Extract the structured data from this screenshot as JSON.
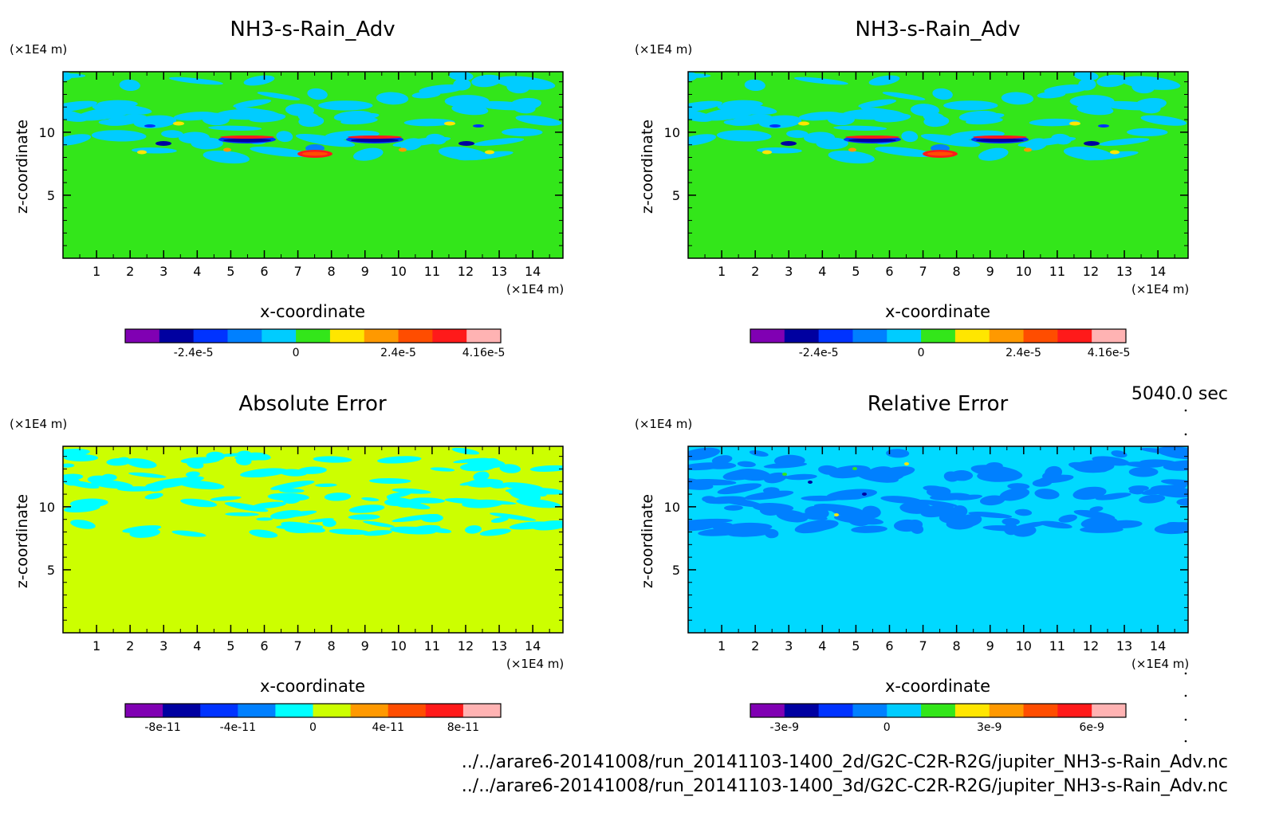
{
  "timestamp": "5040.0 sec",
  "files": [
    "../../arare6-20141008/run_20141103-1400_2d/G2C-C2R-R2G/jupiter_NH3-s-Rain_Adv.nc",
    "../../arare6-20141008/run_20141103-1400_3d/G2C-C2R-R2G/jupiter_NH3-s-Rain_Adv.nc"
  ],
  "chart_data": [
    {
      "type": "heatmap",
      "title": "NH3-s-Rain_Adv",
      "xlabel": "x-coordinate",
      "ylabel": "z-coordinate",
      "x_unit": "(×1E4 m)",
      "y_unit": "(×1E4 m)",
      "xlim": [
        0,
        14.9
      ],
      "ylim": [
        0,
        14.8
      ],
      "xticks": [
        "1",
        "2",
        "3",
        "4",
        "5",
        "6",
        "7",
        "8",
        "9",
        "10",
        "11",
        "12",
        "13",
        "14"
      ],
      "yticks": [
        "5",
        "10"
      ],
      "background_color": "#33e61a",
      "field_pattern": "rain",
      "colorbar": {
        "colors": [
          "#8000b3",
          "#0000a0",
          "#0033ff",
          "#0080ff",
          "#00ccff",
          "#33e61a",
          "#ffe600",
          "#ff9900",
          "#ff4d00",
          "#ff1a1a",
          "#ffb3b3"
        ],
        "labels": [
          "-2.4e-5",
          "0",
          "2.4e-5",
          "4.16e-5"
        ],
        "label_positions": [
          2,
          5,
          8,
          10.5
        ]
      }
    },
    {
      "type": "heatmap",
      "title": "NH3-s-Rain_Adv",
      "xlabel": "x-coordinate",
      "ylabel": "z-coordinate",
      "x_unit": "(×1E4 m)",
      "y_unit": "(×1E4 m)",
      "xlim": [
        0,
        14.9
      ],
      "ylim": [
        0,
        14.8
      ],
      "xticks": [
        "1",
        "2",
        "3",
        "4",
        "5",
        "6",
        "7",
        "8",
        "9",
        "10",
        "11",
        "12",
        "13",
        "14"
      ],
      "yticks": [
        "5",
        "10"
      ],
      "background_color": "#33e61a",
      "field_pattern": "rain",
      "colorbar": {
        "colors": [
          "#8000b3",
          "#0000a0",
          "#0033ff",
          "#0080ff",
          "#00ccff",
          "#33e61a",
          "#ffe600",
          "#ff9900",
          "#ff4d00",
          "#ff1a1a",
          "#ffb3b3"
        ],
        "labels": [
          "-2.4e-5",
          "0",
          "2.4e-5",
          "4.16e-5"
        ],
        "label_positions": [
          2,
          5,
          8,
          10.5
        ]
      }
    },
    {
      "type": "heatmap",
      "title": "Absolute Error",
      "xlabel": "x-coordinate",
      "ylabel": "z-coordinate",
      "x_unit": "(×1E4 m)",
      "y_unit": "(×1E4 m)",
      "xlim": [
        0,
        14.9
      ],
      "ylim": [
        0,
        14.8
      ],
      "xticks": [
        "1",
        "2",
        "3",
        "4",
        "5",
        "6",
        "7",
        "8",
        "9",
        "10",
        "11",
        "12",
        "13",
        "14"
      ],
      "yticks": [
        "5",
        "10"
      ],
      "background_color": "#ccff00",
      "field_pattern": "abs",
      "colorbar": {
        "colors": [
          "#8000b3",
          "#0000a0",
          "#0033ff",
          "#0080ff",
          "#00ffff",
          "#ccff00",
          "#ff9900",
          "#ff4d00",
          "#ff1a1a",
          "#ffb3b3"
        ],
        "labels": [
          "-8e-11",
          "-4e-11",
          "0",
          "4e-11",
          "8e-11"
        ],
        "label_positions": [
          1,
          3,
          5,
          7,
          9
        ]
      }
    },
    {
      "type": "heatmap",
      "title": "Relative Error",
      "xlabel": "x-coordinate",
      "ylabel": "z-coordinate",
      "x_unit": "(×1E4 m)",
      "y_unit": "(×1E4 m)",
      "xlim": [
        0,
        14.9
      ],
      "ylim": [
        0,
        14.8
      ],
      "xticks": [
        "1",
        "2",
        "3",
        "4",
        "5",
        "6",
        "7",
        "8",
        "9",
        "10",
        "11",
        "12",
        "13",
        "14"
      ],
      "yticks": [
        "5",
        "10"
      ],
      "background_color": "#00d9ff",
      "field_pattern": "rel",
      "colorbar": {
        "colors": [
          "#8000b3",
          "#0000a0",
          "#0033ff",
          "#0080ff",
          "#00ccff",
          "#33e61a",
          "#ffe600",
          "#ff9900",
          "#ff4d00",
          "#ff1a1a",
          "#ffb3b3"
        ],
        "labels": [
          "-3e-9",
          "0",
          "3e-9",
          "6e-9"
        ],
        "label_positions": [
          1,
          4,
          7,
          10
        ]
      }
    }
  ]
}
